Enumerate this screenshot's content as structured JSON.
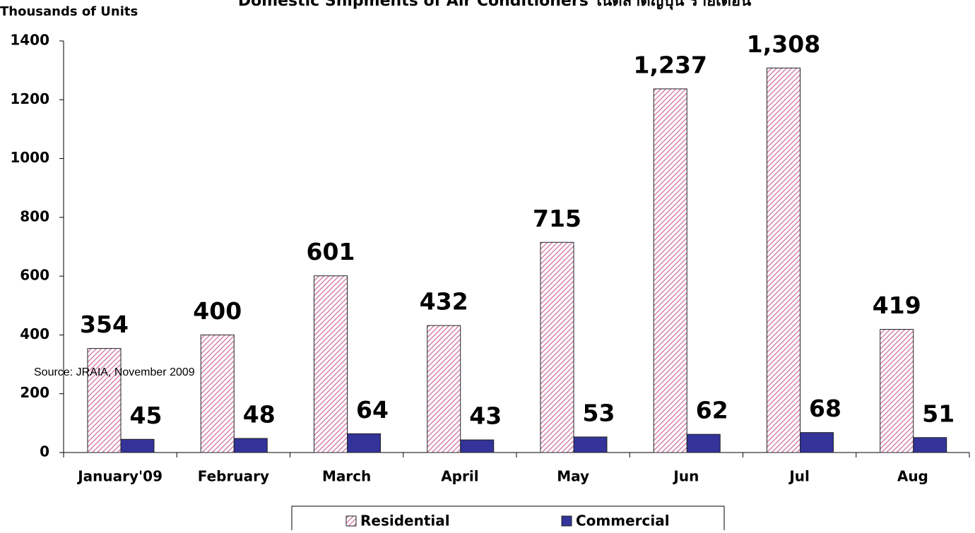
{
  "chart_data": {
    "type": "bar",
    "title": "Domestic Shipments of Air Conditioners ในตลาดญี่ปุ่น รายเดือน",
    "y_label": "Thousands of Units",
    "annotation": "Source: JRAIA, November 2009",
    "categories": [
      "January'09",
      "February",
      "March",
      "April",
      "May",
      "Jun",
      "Jul",
      "Aug"
    ],
    "series": [
      {
        "name": "Residential",
        "color": "#cc6699",
        "pattern": "hatch",
        "values": [
          354,
          400,
          601,
          432,
          715,
          1237,
          1308,
          419
        ],
        "value_labels": [
          "354",
          "400",
          "601",
          "432",
          "715",
          "1,237",
          "1,308",
          "419"
        ]
      },
      {
        "name": "Commercial",
        "color": "#333399",
        "values": [
          45,
          48,
          64,
          43,
          53,
          62,
          68,
          51
        ]
      }
    ],
    "ylim": [
      0,
      1400
    ],
    "yticks": [
      0,
      200,
      400,
      600,
      800,
      1000,
      1200,
      1400
    ],
    "grid": false,
    "legend": "bottom"
  }
}
